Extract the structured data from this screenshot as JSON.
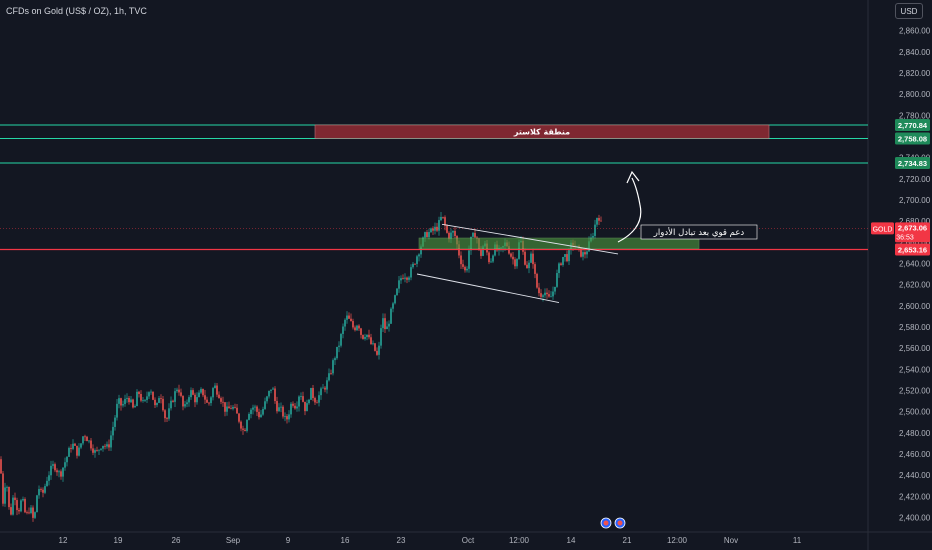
{
  "header": {
    "title": "CFDs on Gold (US$ / OZ), 1h, TVC",
    "currency": "USD"
  },
  "colors": {
    "background": "#131722",
    "up": "#26a69a",
    "down": "#ef5350",
    "level_line": "#26d7a6",
    "support_line": "#f23645",
    "cluster_zone": "#8b2a33",
    "support_zone": "#4c9a3e"
  },
  "annotations": {
    "cluster_zone_label": "منطقة كلاستر",
    "support_label": "دعم قوي بعد تبادل الأدوار"
  },
  "price_tags": {
    "level_1": "2,770.84",
    "level_2": "2,758.08",
    "level_3": "2,734.83",
    "symbol": "GOLD",
    "last_price": "2,673.06",
    "countdown": "36:53",
    "support": "2,653.16"
  },
  "chart_data": {
    "type": "candlestick",
    "title": "CFDs on Gold (US$ / OZ), 1h, TVC",
    "y_range": [
      2390,
      2870
    ],
    "y_ticks": [
      2400,
      2420,
      2440,
      2460,
      2480,
      2500,
      2520,
      2540,
      2560,
      2580,
      2600,
      2620,
      2640,
      2660,
      2680,
      2700,
      2720,
      2740,
      2760,
      2780,
      2800,
      2820,
      2840,
      2860
    ],
    "x_ticks": [
      "12",
      "19",
      "26",
      "Sep",
      "9",
      "16",
      "23",
      "Oct",
      "12:00",
      "14",
      "21",
      "12:00",
      "Nov",
      "11"
    ],
    "horizontal_levels": [
      2770.84,
      2758.08,
      2734.83,
      2653.16
    ],
    "last_price": 2673.06,
    "path": [
      [
        0,
        2455
      ],
      [
        3,
        2415
      ],
      [
        6,
        2440
      ],
      [
        10,
        2398
      ],
      [
        14,
        2425
      ],
      [
        18,
        2405
      ],
      [
        22,
        2418
      ],
      [
        26,
        2400
      ],
      [
        30,
        2410
      ],
      [
        34,
        2395
      ],
      [
        38,
        2430
      ],
      [
        42,
        2420
      ],
      [
        48,
        2440
      ],
      [
        54,
        2450
      ],
      [
        60,
        2440
      ],
      [
        66,
        2455
      ],
      [
        72,
        2470
      ],
      [
        78,
        2460
      ],
      [
        84,
        2480
      ],
      [
        90,
        2470
      ],
      [
        96,
        2460
      ],
      [
        102,
        2470
      ],
      [
        108,
        2465
      ],
      [
        114,
        2490
      ],
      [
        118,
        2510
      ],
      [
        122,
        2505
      ],
      [
        128,
        2515
      ],
      [
        134,
        2500
      ],
      [
        138,
        2520
      ],
      [
        144,
        2505
      ],
      [
        150,
        2525
      ],
      [
        156,
        2500
      ],
      [
        160,
        2520
      ],
      [
        166,
        2490
      ],
      [
        172,
        2510
      ],
      [
        178,
        2525
      ],
      [
        184,
        2500
      ],
      [
        190,
        2520
      ],
      [
        196,
        2510
      ],
      [
        202,
        2520
      ],
      [
        208,
        2505
      ],
      [
        214,
        2525
      ],
      [
        220,
        2515
      ],
      [
        226,
        2500
      ],
      [
        232,
        2505
      ],
      [
        238,
        2495
      ],
      [
        244,
        2480
      ],
      [
        248,
        2500
      ],
      [
        254,
        2505
      ],
      [
        260,
        2495
      ],
      [
        266,
        2510
      ],
      [
        272,
        2525
      ],
      [
        276,
        2505
      ],
      [
        282,
        2500
      ],
      [
        286,
        2490
      ],
      [
        292,
        2510
      ],
      [
        296,
        2505
      ],
      [
        300,
        2520
      ],
      [
        306,
        2500
      ],
      [
        310,
        2520
      ],
      [
        316,
        2510
      ],
      [
        322,
        2520
      ],
      [
        326,
        2525
      ],
      [
        330,
        2535
      ],
      [
        334,
        2550
      ],
      [
        338,
        2560
      ],
      [
        342,
        2575
      ],
      [
        346,
        2590
      ],
      [
        350,
        2585
      ],
      [
        354,
        2578
      ],
      [
        358,
        2585
      ],
      [
        362,
        2570
      ],
      [
        366,
        2575
      ],
      [
        370,
        2565
      ],
      [
        374,
        2560
      ],
      [
        378,
        2550
      ],
      [
        382,
        2590
      ],
      [
        386,
        2575
      ],
      [
        390,
        2590
      ],
      [
        396,
        2610
      ],
      [
        400,
        2625
      ],
      [
        404,
        2630
      ],
      [
        408,
        2628
      ],
      [
        412,
        2635
      ],
      [
        416,
        2645
      ],
      [
        420,
        2655
      ],
      [
        426,
        2668
      ],
      [
        432,
        2670
      ],
      [
        438,
        2675
      ],
      [
        442,
        2685
      ],
      [
        448,
        2665
      ],
      [
        454,
        2670
      ],
      [
        460,
        2645
      ],
      [
        466,
        2630
      ],
      [
        470,
        2660
      ],
      [
        476,
        2670
      ],
      [
        480,
        2645
      ],
      [
        484,
        2660
      ],
      [
        490,
        2640
      ],
      [
        494,
        2655
      ],
      [
        500,
        2650
      ],
      [
        506,
        2660
      ],
      [
        512,
        2645
      ],
      [
        516,
        2640
      ],
      [
        520,
        2665
      ],
      [
        524,
        2645
      ],
      [
        528,
        2635
      ],
      [
        532,
        2650
      ],
      [
        536,
        2620
      ],
      [
        540,
        2610
      ],
      [
        544,
        2615
      ],
      [
        548,
        2605
      ],
      [
        552,
        2610
      ],
      [
        556,
        2625
      ],
      [
        560,
        2640
      ],
      [
        564,
        2648
      ],
      [
        568,
        2645
      ],
      [
        572,
        2660
      ],
      [
        576,
        2655
      ],
      [
        580,
        2650
      ],
      [
        584,
        2648
      ],
      [
        588,
        2655
      ],
      [
        592,
        2665
      ],
      [
        596,
        2680
      ],
      [
        598,
        2688
      ],
      [
        602,
        2673
      ]
    ]
  }
}
